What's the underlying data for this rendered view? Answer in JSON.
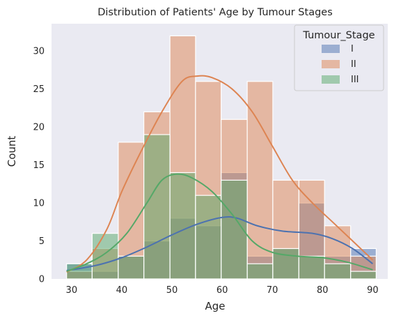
{
  "chart_data": {
    "type": "histogram",
    "title": "Distribution of Patients' Age by Tumour Stages",
    "xlabel": "Age",
    "ylabel": "Count",
    "xlim": [
      26,
      93
    ],
    "ylim": [
      0,
      33.6
    ],
    "x_ticks": [
      30,
      40,
      50,
      60,
      70,
      80,
      90
    ],
    "y_ticks": [
      0,
      5,
      10,
      15,
      20,
      25,
      30
    ],
    "grid": false,
    "legend": {
      "title": "Tumour_Stage",
      "placement": "top-right"
    },
    "bin_edges": [
      29,
      34.1,
      39.3,
      44.4,
      49.6,
      54.7,
      59.8,
      65.0,
      70.1,
      75.3,
      80.4,
      85.6,
      90.7
    ],
    "series": [
      {
        "name": "I",
        "color": "#4c72b0",
        "counts": [
          2,
          1,
          3,
          5,
          8,
          7,
          14,
          3,
          4,
          10,
          3,
          4
        ],
        "kde": [
          [
            29,
            1.1
          ],
          [
            35,
            1.8
          ],
          [
            40,
            2.8
          ],
          [
            45,
            4.2
          ],
          [
            50,
            5.8
          ],
          [
            55,
            7.2
          ],
          [
            60,
            8.1
          ],
          [
            63,
            8.0
          ],
          [
            67,
            7.0
          ],
          [
            72,
            6.3
          ],
          [
            78,
            6.0
          ],
          [
            82,
            5.3
          ],
          [
            86,
            4.0
          ],
          [
            90,
            2.0
          ]
        ]
      },
      {
        "name": "II",
        "color": "#dd8452",
        "counts": [
          1,
          4,
          18,
          22,
          32,
          26,
          21,
          26,
          13,
          13,
          7,
          3
        ],
        "kde": [
          [
            29,
            0.9
          ],
          [
            33,
            2.5
          ],
          [
            37,
            6.5
          ],
          [
            40,
            11.5
          ],
          [
            44,
            17.0
          ],
          [
            48,
            22.0
          ],
          [
            52,
            26.0
          ],
          [
            55,
            26.7
          ],
          [
            58,
            26.5
          ],
          [
            62,
            25.0
          ],
          [
            66,
            22.0
          ],
          [
            70,
            17.5
          ],
          [
            74,
            13.0
          ],
          [
            78,
            10.0
          ],
          [
            82,
            7.5
          ],
          [
            86,
            5.0
          ],
          [
            90,
            2.5
          ]
        ]
      },
      {
        "name": "III",
        "color": "#55a868",
        "counts": [
          2,
          6,
          3,
          19,
          14,
          11,
          13,
          2,
          4,
          3,
          2,
          1
        ],
        "kde": [
          [
            29,
            1.0
          ],
          [
            33,
            2.0
          ],
          [
            37,
            3.5
          ],
          [
            41,
            6.0
          ],
          [
            45,
            10.0
          ],
          [
            48,
            13.0
          ],
          [
            51,
            13.8
          ],
          [
            54,
            13.3
          ],
          [
            58,
            11.5
          ],
          [
            62,
            8.5
          ],
          [
            66,
            5.0
          ],
          [
            70,
            3.5
          ],
          [
            75,
            3.0
          ],
          [
            80,
            2.8
          ],
          [
            85,
            2.2
          ],
          [
            90,
            1.2
          ]
        ]
      }
    ]
  }
}
